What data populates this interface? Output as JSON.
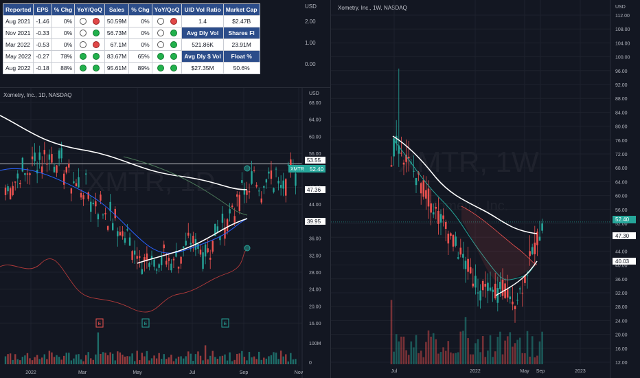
{
  "colors": {
    "bg": "#131722",
    "up": "#26a69a",
    "down": "#ef5350",
    "ma_white": "#ffffff",
    "ma_blue": "#2962ff",
    "rs_line": "#b23a3a",
    "price_line": "#26a69a"
  },
  "fundamentals": {
    "headers": [
      "Reported",
      "EPS",
      "% Chg",
      "YoY/QoQ",
      "Sales",
      "% Chg",
      "YoY/QoQ",
      "U/D Vol Ratio",
      "Market Cap"
    ],
    "rows": [
      {
        "reported": "Aug 2021",
        "eps": "-1.46",
        "eps_chg": "0%",
        "eps_yoy": "empty",
        "eps_qoq": "red",
        "sales": "50.59M",
        "sales_chg": "0%",
        "sales_yoy": "empty",
        "sales_qoq": "red"
      },
      {
        "reported": "Nov 2021",
        "eps": "-0.33",
        "eps_chg": "0%",
        "eps_yoy": "empty",
        "eps_qoq": "green",
        "sales": "56.73M",
        "sales_chg": "0%",
        "sales_yoy": "empty",
        "sales_qoq": "green"
      },
      {
        "reported": "Mar 2022",
        "eps": "-0.53",
        "eps_chg": "0%",
        "eps_yoy": "empty",
        "eps_qoq": "red",
        "sales": "67.1M",
        "sales_chg": "0%",
        "sales_yoy": "empty",
        "sales_qoq": "green"
      },
      {
        "reported": "May 2022",
        "eps": "-0.27",
        "eps_chg": "78%",
        "eps_yoy": "green",
        "eps_qoq": "green",
        "sales": "83.67M",
        "sales_chg": "65%",
        "sales_yoy": "green",
        "sales_qoq": "green"
      },
      {
        "reported": "Aug 2022",
        "eps": "-0.18",
        "eps_chg": "88%",
        "eps_yoy": "green",
        "eps_qoq": "green",
        "sales": "95.61M",
        "sales_chg": "89%",
        "sales_yoy": "green",
        "sales_qoq": "green"
      }
    ],
    "side": [
      {
        "value": "1.4",
        "label2": "$2.47B"
      },
      {
        "hdr1": "Avg Dly Vol",
        "hdr2": "Shares Fl"
      },
      {
        "value": "521.86K",
        "label2": "23.91M"
      },
      {
        "hdr1": "Avg Dly $ Vol",
        "hdr2": "Float %"
      },
      {
        "value": "$27.35M",
        "label2": "50.6%"
      }
    ]
  },
  "top_scale": {
    "unit": "USD",
    "ticks": [
      "2.00",
      "1.00",
      "0.00"
    ]
  },
  "daily": {
    "title": "Xometry, Inc., 1D, NASDAQ",
    "watermark": "XMTR, 1D",
    "unit": "USD",
    "y_ticks": [
      "68.00",
      "64.00",
      "60.00",
      "56.00",
      "52.00",
      "48.00",
      "44.00",
      "40.00",
      "36.00",
      "32.00",
      "28.00",
      "24.00",
      "20.00",
      "16.00"
    ],
    "vol_ticks": [
      "100M",
      "0"
    ],
    "x_labels": [
      "2022",
      "Mar",
      "May",
      "Jul",
      "Sep",
      "Nov"
    ],
    "price_labels": {
      "last": "52.40",
      "ticker": "XMTR",
      "level1": "53.55",
      "level2": "47.36",
      "level3": "39.95"
    },
    "earnings_marks": [
      "E",
      "E",
      "E"
    ]
  },
  "weekly": {
    "title": "Xometry, Inc., 1W, NASDAQ",
    "watermark": "XMTR, 1W",
    "watermark_sub": "Xometry, Inc.",
    "unit": "USD",
    "y_ticks": [
      "112.00",
      "108.00",
      "104.00",
      "100.00",
      "96.00",
      "92.00",
      "88.00",
      "84.00",
      "80.00",
      "76.00",
      "72.00",
      "68.00",
      "64.00",
      "60.00",
      "56.00",
      "52.00",
      "48.00",
      "44.00",
      "40.00",
      "36.00",
      "32.00",
      "28.00",
      "24.00",
      "20.00",
      "16.00",
      "12.00"
    ],
    "x_labels": [
      "Jul",
      "2022",
      "May",
      "Sep",
      "2023"
    ],
    "price_labels": {
      "last": "52.40",
      "level1": "47.30",
      "level2": "40.03"
    }
  }
}
